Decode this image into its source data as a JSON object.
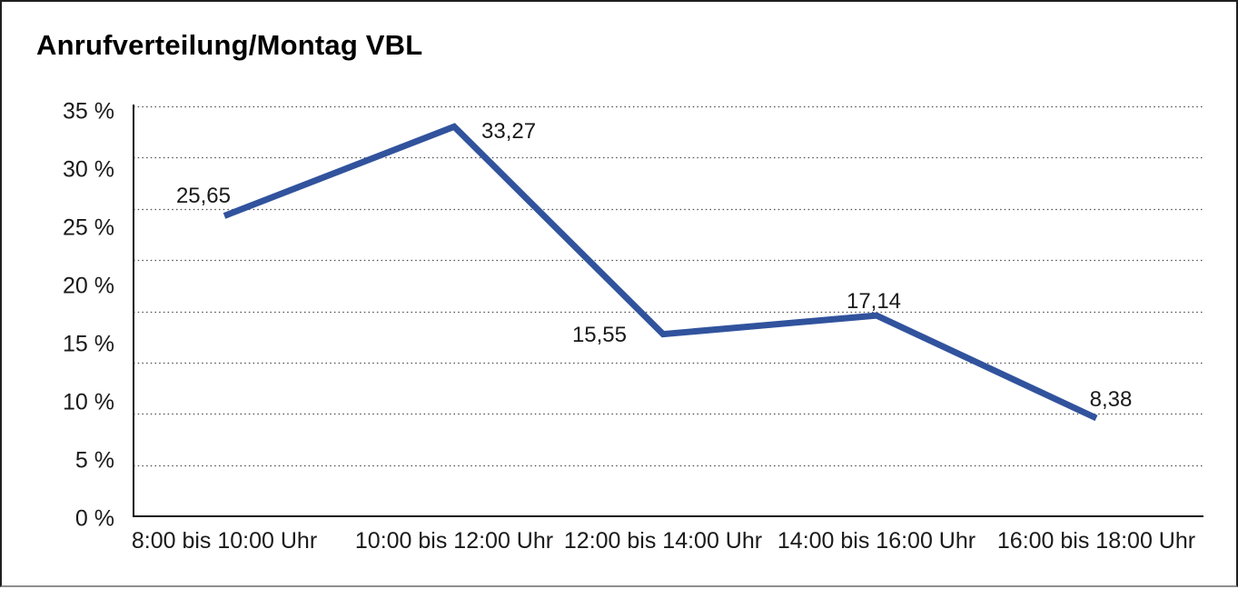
{
  "title": "Anrufverteilung/Montag VBL",
  "chart_data": {
    "type": "line",
    "title": "Anrufverteilung/Montag VBL",
    "categories": [
      "8:00 bis 10:00 Uhr",
      "10:00 bis 12:00 Uhr",
      "12:00 bis 14:00 Uhr",
      "14:00 bis 16:00 Uhr",
      "16:00 bis 18:00 Uhr"
    ],
    "values": [
      25.65,
      33.27,
      15.55,
      17.14,
      8.38
    ],
    "point_labels": [
      "25,65",
      "33,27",
      "15,55",
      "17,14",
      "8,38"
    ],
    "y_tick_labels": [
      "35 %",
      "30 %",
      "25 %",
      "20 %",
      "15 %",
      "10 %",
      "5 %",
      "0 %"
    ],
    "ylim": [
      0,
      35
    ],
    "y_tick_step": 5,
    "xlabel": "",
    "ylabel": "",
    "grid": "horizontal-dotted",
    "legend": "none",
    "line_color": "#31539D",
    "grid_color": "#4d4d4d",
    "axis_color": "#111111",
    "text_color": "#1a1a1a",
    "background": "#ffffff"
  }
}
